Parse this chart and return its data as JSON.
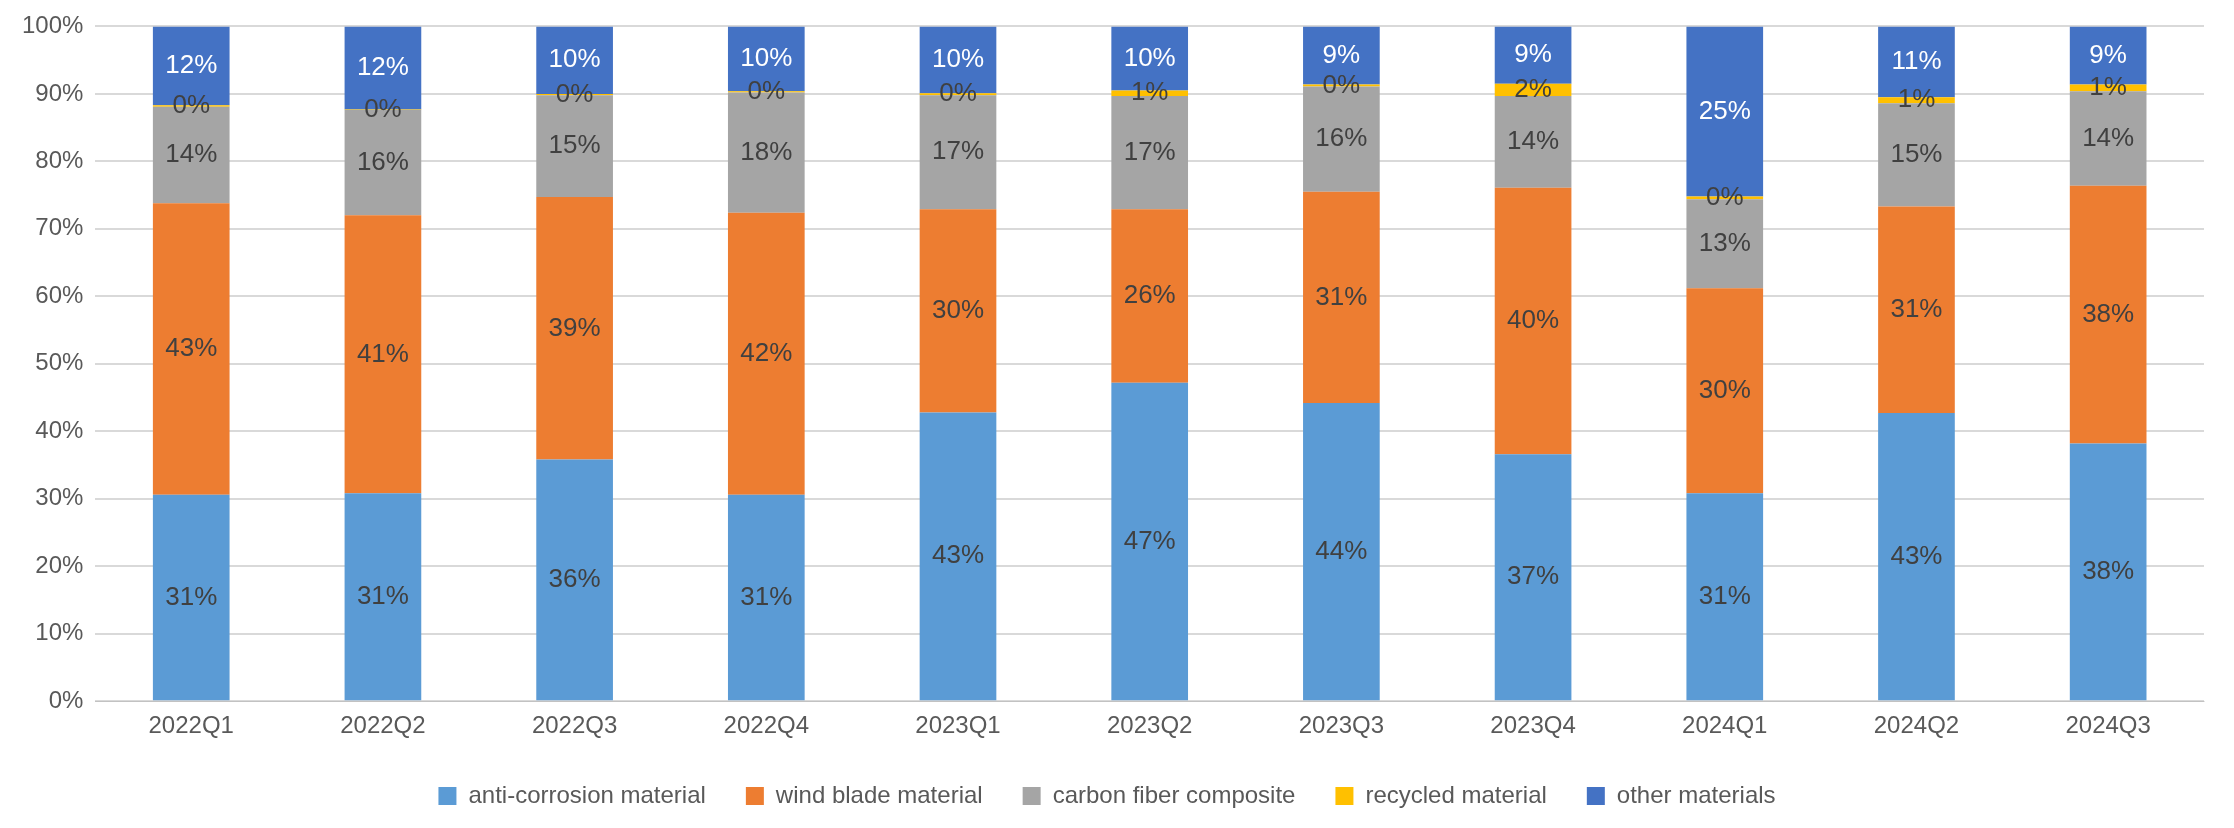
{
  "chart_data": {
    "type": "bar",
    "stacked": true,
    "categories": [
      "2022Q1",
      "2022Q2",
      "2022Q3",
      "2022Q4",
      "2023Q1",
      "2023Q2",
      "2023Q3",
      "2023Q4",
      "2024Q1",
      "2024Q2",
      "2024Q3"
    ],
    "series": [
      {
        "name": "anti-corrosion material",
        "color": "#5b9bd5",
        "values": [
          30.6,
          30.8,
          35.8,
          30.6,
          42.8,
          47.2,
          44.2,
          36.6,
          30.8,
          42.7,
          38.2
        ],
        "value_labels": [
          "31%",
          "31%",
          "36%",
          "31%",
          "43%",
          "47%",
          "44%",
          "37%",
          "31%",
          "43%",
          "38%"
        ]
      },
      {
        "name": "wind blade material",
        "color": "#ed7d31",
        "values": [
          43.2,
          41.2,
          38.9,
          41.8,
          30.1,
          25.7,
          31.3,
          39.5,
          30.4,
          30.6,
          38.2
        ],
        "value_labels": [
          "43%",
          "41%",
          "39%",
          "42%",
          "30%",
          "26%",
          "31%",
          "40%",
          "30%",
          "31%",
          "38%"
        ]
      },
      {
        "name": "carbon fiber composite",
        "color": "#a5a5a5",
        "values": [
          14.3,
          15.6,
          15.1,
          17.8,
          16.9,
          16.8,
          15.6,
          13.6,
          13.2,
          15.3,
          14.0
        ],
        "value_labels": [
          "14%",
          "16%",
          "15%",
          "18%",
          "17%",
          "17%",
          "16%",
          "14%",
          "13%",
          "15%",
          "14%"
        ]
      },
      {
        "name": "recycled material",
        "color": "#ffc000",
        "values": [
          0.2,
          0.1,
          0.2,
          0.2,
          0.3,
          0.8,
          0.3,
          1.8,
          0.4,
          0.9,
          1.0
        ],
        "value_labels": [
          "0%",
          "0%",
          "0%",
          "0%",
          "0%",
          "1%",
          "0%",
          "2%",
          "0%",
          "1%",
          "1%"
        ]
      },
      {
        "name": "other materials",
        "color": "#4472c4",
        "values": [
          11.7,
          12.3,
          10.0,
          9.6,
          9.9,
          9.5,
          8.6,
          8.5,
          25.2,
          10.5,
          8.6
        ],
        "value_labels": [
          "12%",
          "12%",
          "10%",
          "10%",
          "10%",
          "10%",
          "9%",
          "9%",
          "25%",
          "11%",
          "9%"
        ]
      }
    ],
    "ylim": [
      0,
      100
    ],
    "yticks": [
      {
        "value": 0,
        "label": "0%"
      },
      {
        "value": 10,
        "label": "10%"
      },
      {
        "value": 20,
        "label": "20%"
      },
      {
        "value": 30,
        "label": "30%"
      },
      {
        "value": 40,
        "label": "40%"
      },
      {
        "value": 50,
        "label": "50%"
      },
      {
        "value": 60,
        "label": "60%"
      },
      {
        "value": 70,
        "label": "70%"
      },
      {
        "value": 80,
        "label": "80%"
      },
      {
        "value": 90,
        "label": "90%"
      },
      {
        "value": 100,
        "label": "100%"
      }
    ],
    "grid": "y",
    "legend": "bottom"
  }
}
